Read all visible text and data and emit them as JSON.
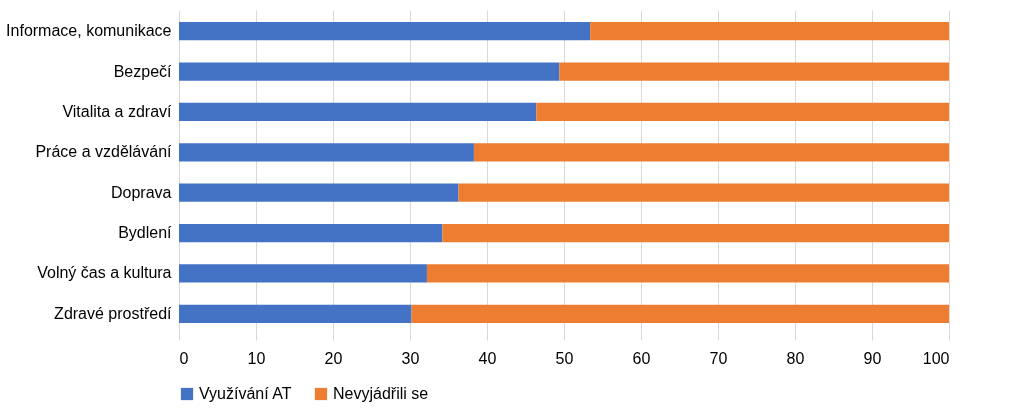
{
  "chart_data": {
    "type": "bar",
    "orientation": "horizontal",
    "stacked": true,
    "categories": [
      "Informace, komunikace",
      "Bezpečí",
      "Vitalita a zdraví",
      "Práce a vzdělávání",
      "Doprava",
      "Bydlení",
      "Volný čas a kultura",
      "Zdravé prostředí"
    ],
    "series": [
      {
        "name": "Využívání AT",
        "color": "#4472c4",
        "values": [
          53.4,
          49.4,
          46.4,
          38.3,
          36.3,
          34.2,
          32.2,
          30.2
        ]
      },
      {
        "name": "Nevyjádřili se",
        "color": "#ed7d31",
        "values": [
          46.6,
          50.6,
          53.6,
          61.7,
          63.7,
          65.8,
          67.8,
          69.8
        ]
      }
    ],
    "xlim": [
      0,
      100
    ],
    "xticks": [
      0,
      10,
      20,
      30,
      40,
      50,
      60,
      70,
      80,
      90,
      100
    ],
    "grid": "x",
    "legend": "bottom"
  }
}
